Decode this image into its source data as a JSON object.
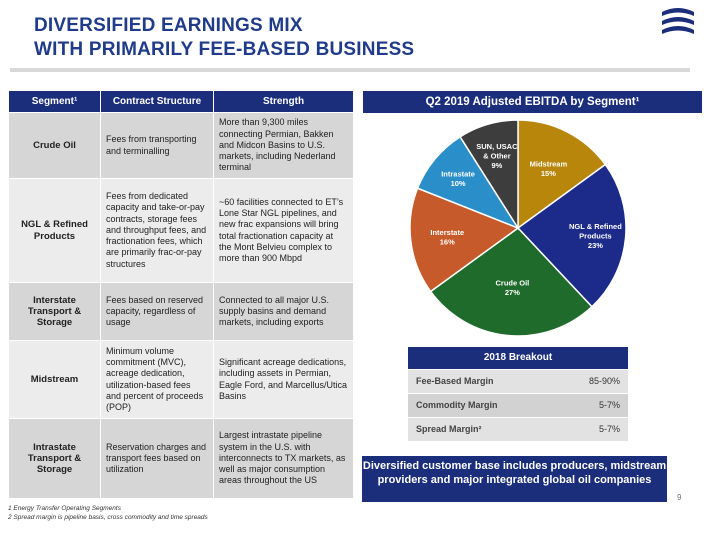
{
  "title": {
    "line1": "DIVERSIFIED EARNINGS MIX",
    "line2": "WITH PRIMARILY FEE-BASED BUSINESS"
  },
  "table": {
    "headers": [
      "Segment¹",
      "Contract Structure",
      "Strength"
    ],
    "rows": [
      {
        "segment": "Crude Oil",
        "contract": "Fees from transporting and terminalling",
        "strength": "More than 9,300 miles connecting Permian, Bakken and Midcon Basins to U.S. markets, including Nederland terminal"
      },
      {
        "segment": "NGL & Refined Products",
        "contract": "Fees from dedicated capacity and take-or-pay contracts, storage fees and throughput fees, and fractionation fees, which are primarily frac-or-pay structures",
        "strength": "~60 facilities connected to ET’s Lone Star NGL pipelines, and new frac expansions will bring total fractionation capacity at the Mont Belvieu complex to more than 900 Mbpd"
      },
      {
        "segment": "Interstate Transport & Storage",
        "contract": "Fees based on reserved capacity, regardless of usage",
        "strength": "Connected to all major U.S. supply basins and demand markets, including exports"
      },
      {
        "segment": "Midstream",
        "contract": "Minimum volume commitment (MVC), acreage dedication, utilization-based fees and percent of proceeds (POP)",
        "strength": "Significant acreage dedications, including assets in Permian, Eagle Ford, and Marcellus/Utica Basins"
      },
      {
        "segment": "Intrastate Transport & Storage",
        "contract": "Reservation charges and transport fees based on utilization",
        "strength": "Largest intrastate pipeline system in the U.S. with interconnects to TX markets, as well as major consumption areas throughout the US"
      }
    ]
  },
  "footnotes": {
    "note1": "1 Energy Transfer Operating Segments",
    "note2": "2 Spread margin is pipeline basis, cross commodity and time spreads"
  },
  "chart_title": "Q2 2019 Adjusted EBITDA by Segment¹",
  "chart_data": {
    "type": "pie",
    "title": "Q2 2019 Adjusted EBITDA by Segment¹",
    "slices": [
      {
        "label": "Midstream",
        "value": 15,
        "display": "15%",
        "color": "#b8860b"
      },
      {
        "label": "NGL & Refined Products",
        "value": 23,
        "display": "23%",
        "color": "#1c2a8a"
      },
      {
        "label": "Crude Oil",
        "value": 27,
        "display": "27%",
        "color": "#1f6b2c"
      },
      {
        "label": "Interstate",
        "value": 16,
        "display": "16%",
        "color": "#c65a2a"
      },
      {
        "label": "Intrastate",
        "value": 10,
        "display": "10%",
        "color": "#2a8fc9"
      },
      {
        "label": "SUN, USAC & Other",
        "value": 9,
        "display": "9%",
        "color": "#3d3d3d"
      }
    ]
  },
  "breakout": {
    "title": "2018 Breakout",
    "rows": [
      {
        "label": "Fee-Based Margin",
        "value": "85-90%"
      },
      {
        "label": "Commodity Margin",
        "value": "5-7%"
      },
      {
        "label": "Spread Margin²",
        "value": "5-7%"
      }
    ]
  },
  "callout": "Diversified customer base includes producers, midstream providers and major integrated global oil companies",
  "page_number": "9",
  "colors": {
    "navy": "#1b2e7b",
    "title_blue": "#1f3b8a",
    "row_dark": "#d6d6d6",
    "row_light": "#ececec"
  },
  "icons": {
    "logo": "energy-transfer-logo"
  }
}
